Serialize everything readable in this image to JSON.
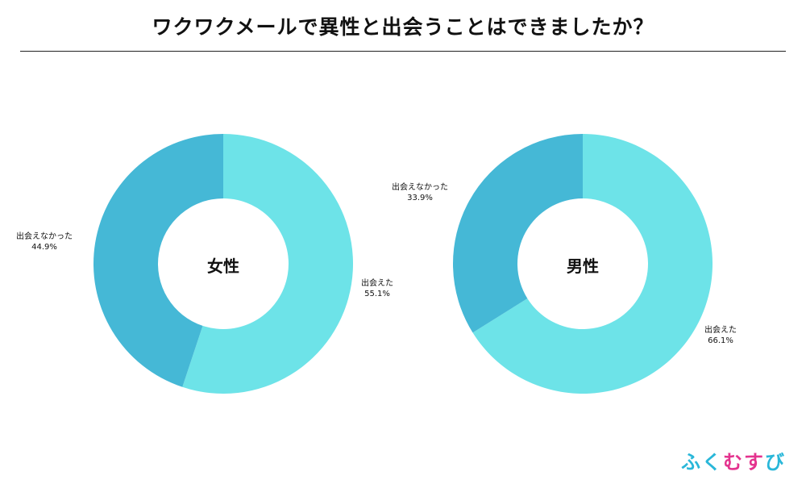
{
  "title": "ワクワクメールで異性と出会うことはできましたか？",
  "colors": {
    "met": "#6de3e8",
    "not_met": "#45b8d6"
  },
  "logo": {
    "chars": [
      {
        "text": "ふ",
        "color": "#29b7d9"
      },
      {
        "text": "く",
        "color": "#29b7d9"
      },
      {
        "text": "む",
        "color": "#e4338e"
      },
      {
        "text": "す",
        "color": "#e4338e"
      },
      {
        "text": "び",
        "color": "#29b7d9"
      }
    ]
  },
  "chart_data": [
    {
      "type": "pie",
      "center_label": "女性",
      "slices": [
        {
          "label": "出会えた",
          "value": 55.1,
          "display": "55.1%"
        },
        {
          "label": "出会えなかった",
          "value": 44.9,
          "display": "44.9%"
        }
      ]
    },
    {
      "type": "pie",
      "center_label": "男性",
      "slices": [
        {
          "label": "出会えた",
          "value": 66.1,
          "display": "66.1%"
        },
        {
          "label": "出会えなかった",
          "value": 33.9,
          "display": "33.9%"
        }
      ]
    }
  ]
}
